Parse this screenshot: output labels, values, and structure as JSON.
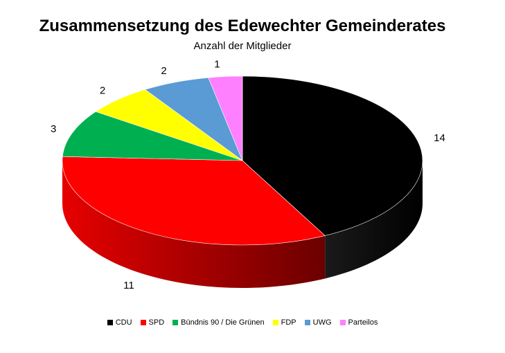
{
  "chart_data": {
    "type": "pie",
    "title": "Zusammensetzung des Edewechter Gemeinderates",
    "subtitle": "Anzahl der Mitglieder",
    "categories": [
      "CDU",
      "SPD",
      "Bündnis 90 / Die Grünen",
      "FDP",
      "UWG",
      "Parteilos"
    ],
    "values": [
      14,
      11,
      3,
      2,
      2,
      1
    ],
    "colors": [
      "#000000",
      "#ff0000",
      "#00b050",
      "#ffff00",
      "#5b9bd5",
      "#ff80ff"
    ],
    "style": "3d",
    "legend_position": "bottom"
  }
}
